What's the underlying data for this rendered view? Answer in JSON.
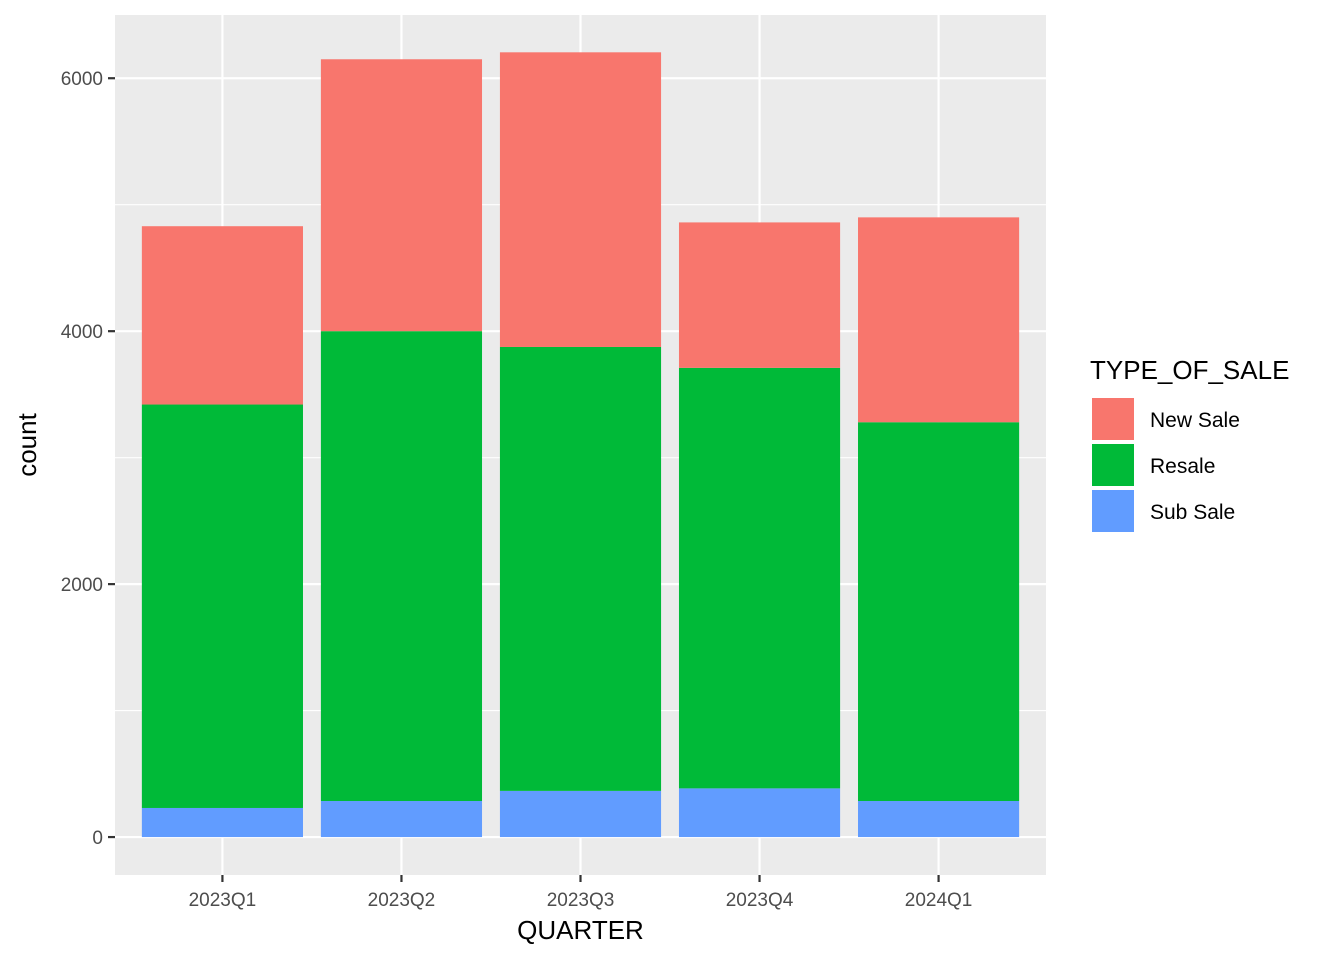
{
  "chart_data": {
    "type": "bar",
    "stacked": true,
    "title": "",
    "xlabel": "QUARTER",
    "ylabel": "count",
    "categories": [
      "2023Q1",
      "2023Q2",
      "2023Q3",
      "2023Q4",
      "2024Q1"
    ],
    "series": [
      {
        "name": "Sub Sale",
        "color": "#619CFF",
        "values": [
          230,
          285,
          365,
          385,
          285
        ]
      },
      {
        "name": "Resale",
        "color": "#00BA38",
        "values": [
          3190,
          3715,
          3510,
          3325,
          2995
        ]
      },
      {
        "name": "New Sale",
        "color": "#F8766D",
        "values": [
          1410,
          2150,
          2330,
          1150,
          1620
        ]
      }
    ],
    "stack_order": [
      "Sub Sale",
      "Resale",
      "New Sale"
    ],
    "ylim": [
      -300,
      6500
    ],
    "y_ticks": [
      0,
      2000,
      4000,
      6000
    ],
    "y_tick_labels": [
      "0",
      "2000",
      "4000",
      "6000"
    ],
    "y_minor_ticks": [
      1000,
      3000,
      5000
    ],
    "grid": true,
    "panel_background": "#EBEBEB",
    "legend": {
      "title": "TYPE_OF_SALE",
      "position": "right",
      "entries": [
        "New Sale",
        "Resale",
        "Sub Sale"
      ]
    }
  }
}
